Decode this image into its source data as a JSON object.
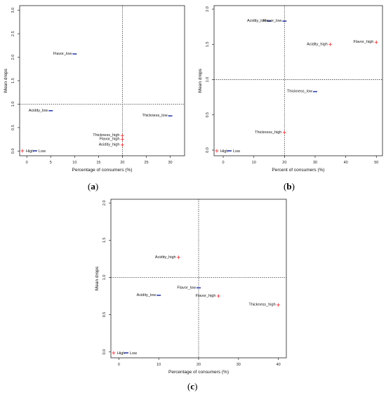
{
  "chart_data": [
    {
      "id": "a",
      "type": "scatter",
      "caption": "a",
      "xlabel": "Percentage of consumers (%)",
      "ylabel": "Mean drops",
      "xlim": [
        -1.5,
        33
      ],
      "ylim": [
        -0.1,
        3.1
      ],
      "xticks": [
        0,
        5,
        10,
        15,
        20,
        25,
        30
      ],
      "yticks": [
        0.0,
        0.5,
        1.0,
        1.5,
        2.0,
        2.5,
        3.0
      ],
      "ytick_labels": [
        "0.0",
        "0.5",
        "1.0",
        "1.5",
        "2.0",
        "2.5",
        "3.0"
      ],
      "vline": 20,
      "hline": 1.0,
      "legend": [
        {
          "label": "High",
          "marker": "+"
        },
        {
          "label": "Low",
          "marker": "-"
        }
      ],
      "points": [
        {
          "label": "Flavor_low",
          "x": 10,
          "y": 2.07,
          "marker": "-"
        },
        {
          "label": "Acidity_low",
          "x": 5,
          "y": 0.86,
          "marker": "-"
        },
        {
          "label": "Thickness_low",
          "x": 30,
          "y": 0.75,
          "marker": "-"
        },
        {
          "label": "Thickness_high",
          "x": 20,
          "y": 0.33,
          "marker": "+"
        },
        {
          "label": "Flavor_high",
          "x": 20,
          "y": 0.25,
          "marker": "+"
        },
        {
          "label": "Acidity_high",
          "x": 20,
          "y": 0.13,
          "marker": "+"
        }
      ]
    },
    {
      "id": "b",
      "type": "scatter",
      "caption": "b",
      "xlabel": "Percent of consumers (%)",
      "ylabel": "Mean drops",
      "xlim": [
        -3,
        52
      ],
      "ylim": [
        -0.08,
        2.05
      ],
      "xticks": [
        0,
        10,
        20,
        30,
        40,
        50
      ],
      "yticks": [
        0.0,
        0.5,
        1.0,
        1.5,
        2.0
      ],
      "ytick_labels": [
        "0.0",
        "0.5",
        "1.0",
        "1.5",
        "2.0"
      ],
      "vline": 20,
      "hline": 1.0,
      "legend": [
        {
          "label": "High",
          "marker": "+"
        },
        {
          "label": "Low",
          "marker": "-"
        }
      ],
      "points": [
        {
          "label": "Acidity_low",
          "x": 15,
          "y": 1.83,
          "marker": "-"
        },
        {
          "label": "Flavor_low",
          "x": 20,
          "y": 1.83,
          "marker": "-"
        },
        {
          "label": "Acidity_high",
          "x": 35,
          "y": 1.5,
          "marker": "+"
        },
        {
          "label": "Flavor_high",
          "x": 50,
          "y": 1.53,
          "marker": "+"
        },
        {
          "label": "Thickness_low",
          "x": 30,
          "y": 0.83,
          "marker": "-"
        },
        {
          "label": "Thickness_high",
          "x": 20,
          "y": 0.25,
          "marker": "+"
        }
      ]
    },
    {
      "id": "c",
      "type": "scatter",
      "caption": "c",
      "xlabel": "Percentage of consumers (%)",
      "ylabel": "Mean drops",
      "xlim": [
        -2,
        42
      ],
      "ylim": [
        -0.08,
        2.05
      ],
      "xticks": [
        0,
        10,
        20,
        30,
        40
      ],
      "yticks": [
        0.0,
        0.5,
        1.0,
        1.5,
        2.0
      ],
      "ytick_labels": [
        "0.0",
        "0.5",
        "1.0",
        "1.5",
        "2.0"
      ],
      "vline": 20,
      "hline": 1.0,
      "legend": [
        {
          "label": "High",
          "marker": "+"
        },
        {
          "label": "Low",
          "marker": "-"
        }
      ],
      "points": [
        {
          "label": "Acidity_high",
          "x": 15,
          "y": 1.27,
          "marker": "+"
        },
        {
          "label": "Flavor_low",
          "x": 20,
          "y": 0.86,
          "marker": "-"
        },
        {
          "label": "Acidity_low",
          "x": 10,
          "y": 0.76,
          "marker": "-"
        },
        {
          "label": "Flavor_high",
          "x": 25,
          "y": 0.75,
          "marker": "+"
        },
        {
          "label": "Thickness_high",
          "x": 40,
          "y": 0.63,
          "marker": "+"
        }
      ]
    }
  ],
  "colors": {
    "high": "#e8393d",
    "low": "#2f3fa8",
    "axis": "#222222",
    "guide": "#333333"
  }
}
